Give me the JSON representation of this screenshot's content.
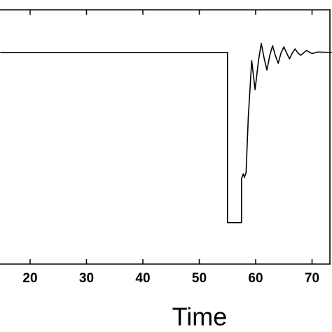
{
  "chart_data": {
    "type": "line",
    "xlabel": "Time",
    "x": [
      14.7,
      55,
      55,
      57.5,
      57.5,
      57.8,
      58.0,
      58.3,
      58.7,
      59.3,
      59.9,
      60.5,
      61.0,
      61.5,
      62.0,
      62.5,
      63.0,
      63.5,
      64.0,
      64.5,
      65.0,
      65.5,
      66.0,
      66.5,
      67.0,
      67.5,
      68.0,
      69.0,
      70.0,
      71.0,
      73.5
    ],
    "values": [
      0.832,
      0.832,
      0.163,
      0.163,
      0.336,
      0.355,
      0.34,
      0.36,
      0.58,
      0.8,
      0.686,
      0.8,
      0.868,
      0.81,
      0.763,
      0.82,
      0.859,
      0.82,
      0.79,
      0.83,
      0.854,
      0.83,
      0.807,
      0.83,
      0.846,
      0.83,
      0.821,
      0.84,
      0.828,
      0.834,
      0.832
    ],
    "color": "#000000",
    "xlim": [
      14.66,
      73.54
    ],
    "xticks": [
      20,
      30,
      40,
      50,
      60,
      70
    ],
    "ylim": [
      0,
      1
    ]
  }
}
